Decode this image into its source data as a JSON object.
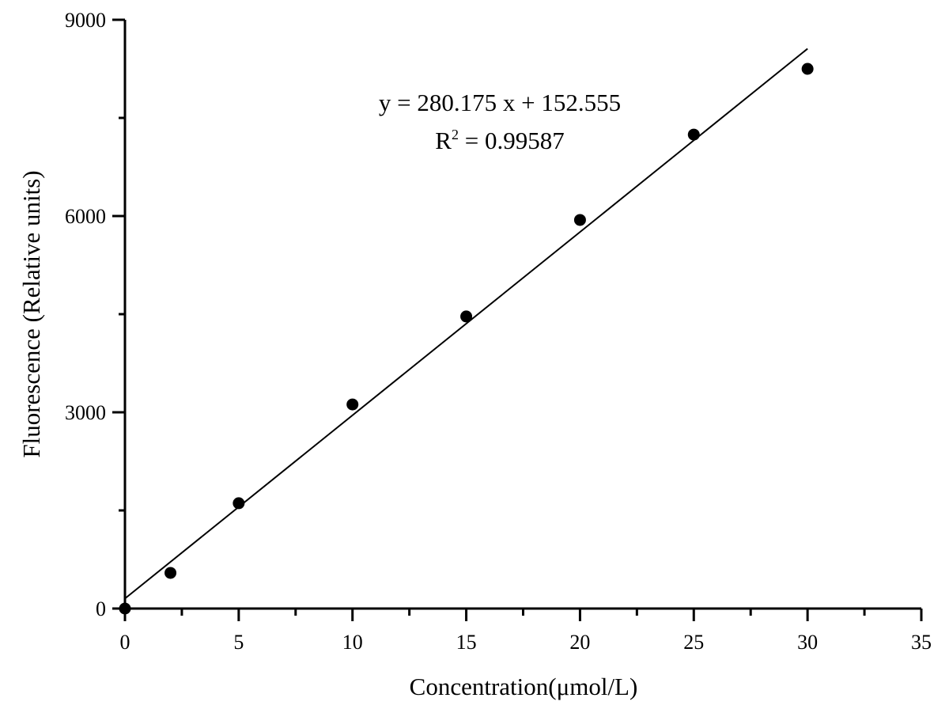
{
  "chart_data": {
    "type": "scatter",
    "title": "",
    "xlabel": "Concentration(μmol/L)",
    "ylabel": "Fluorescence (Relative units)",
    "xlim": [
      0,
      35
    ],
    "ylim": [
      0,
      9000
    ],
    "xticks": [
      0,
      5,
      10,
      15,
      20,
      25,
      30,
      35
    ],
    "yticks": [
      0,
      3000,
      6000,
      9000
    ],
    "x_minor_step": 2.5,
    "y_minor_step": 1500,
    "grid": false,
    "points": [
      {
        "x": 0,
        "y": 0
      },
      {
        "x": 2,
        "y": 545
      },
      {
        "x": 5,
        "y": 1610
      },
      {
        "x": 10,
        "y": 3120
      },
      {
        "x": 15,
        "y": 4465
      },
      {
        "x": 20,
        "y": 5940
      },
      {
        "x": 25,
        "y": 7245
      },
      {
        "x": 30,
        "y": 8250
      }
    ],
    "fit": {
      "slope": 280.175,
      "intercept": 152.555,
      "x_range": [
        0,
        30
      ]
    },
    "annotations": {
      "equation": "y = 280.175 x + 152.555",
      "r2_prefix": "R",
      "r2_sup": "2",
      "r2_value": " = 0.99587"
    },
    "colors": {
      "marker": "#000000",
      "line": "#000000"
    }
  }
}
